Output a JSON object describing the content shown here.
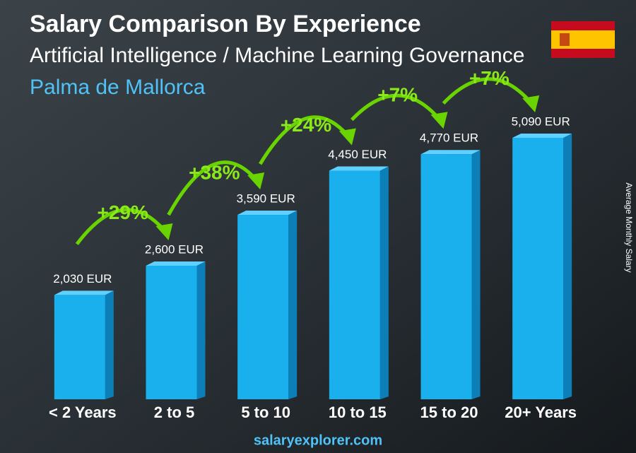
{
  "chart_data": {
    "type": "bar",
    "title": "Salary Comparison By Experience",
    "subtitle": "Artificial Intelligence / Machine Learning Governance",
    "location": "Palma de Mallorca",
    "y_axis_label": "Average Monthly Salary",
    "categories": [
      "< 2 Years",
      "2 to 5",
      "5 to 10",
      "10 to 15",
      "15 to 20",
      "20+ Years"
    ],
    "values": [
      2030,
      2600,
      3590,
      4450,
      4770,
      5090
    ],
    "value_labels": [
      "2,030 EUR",
      "2,600 EUR",
      "3,590 EUR",
      "4,450 EUR",
      "4,770 EUR",
      "5,090 EUR"
    ],
    "changes": [
      "+29%",
      "+38%",
      "+24%",
      "+7%",
      "+7%"
    ],
    "color": "#1ab0ee",
    "footer": "salaryexplorer.com"
  }
}
